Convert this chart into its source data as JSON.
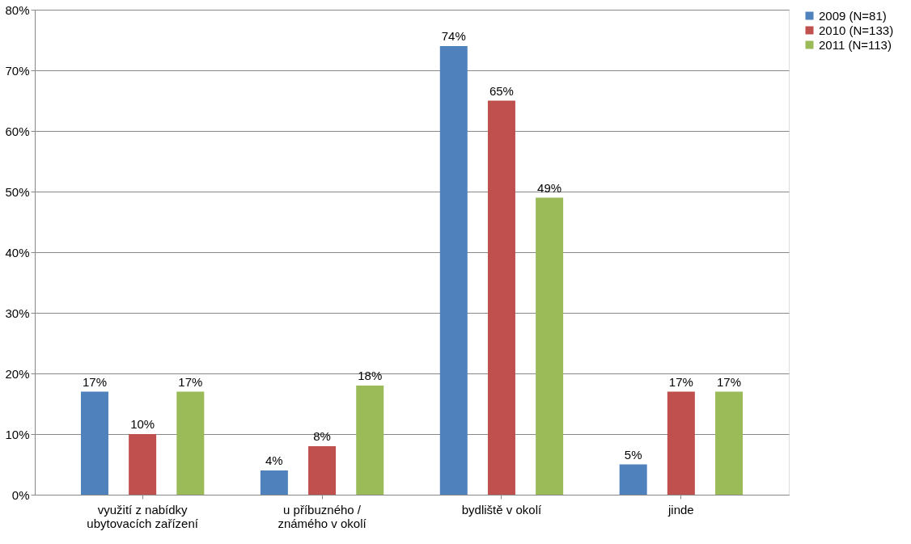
{
  "chart_data": {
    "type": "bar",
    "categories": [
      "využití z nabídky ubytovacích zařízení",
      "u příbuzného / známého v okolí",
      "bydliště v okolí",
      "jinde"
    ],
    "series": [
      {
        "name": "2009 (N=81)",
        "color": "#4f81bd",
        "values": [
          17,
          4,
          74,
          5
        ],
        "value_labels": [
          "17%",
          "4%",
          "74%",
          "5%"
        ]
      },
      {
        "name": "2010 (N=133)",
        "color": "#c0504d",
        "values": [
          10,
          8,
          65,
          17
        ],
        "value_labels": [
          "10%",
          "8%",
          "65%",
          "17%"
        ]
      },
      {
        "name": "2011 (N=113)",
        "color": "#9bbb59",
        "values": [
          17,
          18,
          49,
          17
        ],
        "value_labels": [
          "17%",
          "18%",
          "49%",
          "17%"
        ]
      }
    ],
    "ylim": [
      0,
      80
    ],
    "yticks": [
      {
        "value": 0,
        "label": "0%"
      },
      {
        "value": 10,
        "label": "10%"
      },
      {
        "value": 20,
        "label": "20%"
      },
      {
        "value": 30,
        "label": "30%"
      },
      {
        "value": 40,
        "label": "40%"
      },
      {
        "value": 50,
        "label": "50%"
      },
      {
        "value": 60,
        "label": "60%"
      },
      {
        "value": 70,
        "label": "70%"
      },
      {
        "value": 80,
        "label": "80%"
      }
    ],
    "grid": "y",
    "legend": "right"
  }
}
